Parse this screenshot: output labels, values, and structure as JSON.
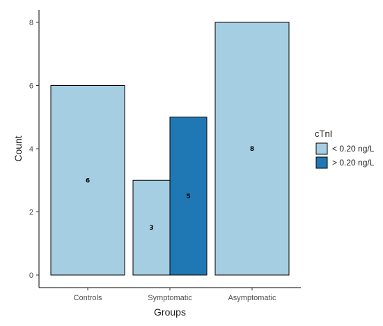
{
  "chart_data": {
    "type": "bar",
    "categories": [
      "Controls",
      "Symptomatic",
      "Asymptomatic"
    ],
    "series": [
      {
        "name": "< 0.20 ng/L",
        "color": "#a6cee3",
        "values": [
          6,
          3,
          8
        ]
      },
      {
        "name": "> 0.20 ng/L",
        "color": "#1f78b4",
        "values": [
          null,
          5,
          null
        ]
      }
    ],
    "bar_labels": [
      {
        "category": "Controls",
        "series": "< 0.20 ng/L",
        "text": "6"
      },
      {
        "category": "Symptomatic",
        "series": "< 0.20 ng/L",
        "text": "3"
      },
      {
        "category": "Symptomatic",
        "series": "> 0.20 ng/L",
        "text": "5"
      },
      {
        "category": "Asymptomatic",
        "series": "< 0.20 ng/L",
        "text": "8"
      }
    ],
    "xlabel": "Groups",
    "ylabel": "Count",
    "ylim": [
      0,
      8
    ],
    "yticks": [
      0,
      2,
      4,
      6,
      8
    ],
    "legend": {
      "title": "cTnI",
      "position": "right"
    },
    "grid": false,
    "bar_style": "dodge"
  }
}
